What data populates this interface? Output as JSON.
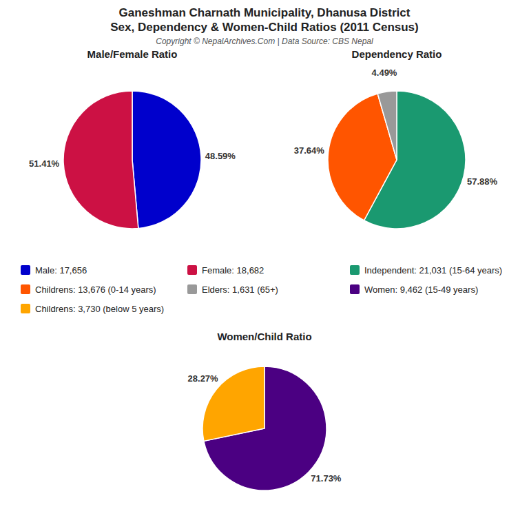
{
  "title": "Ganeshman Charnath Municipality, Dhanusa District",
  "subtitle": "Sex, Dependency & Women-Child Ratios (2011 Census)",
  "annotations": [
    "Copyright © NepalArchives.Com | Data Source: CBS Nepal"
  ],
  "chart_data": [
    {
      "type": "pie",
      "title": "Male/Female Ratio",
      "categories": [
        "Male: 17,656",
        "Female: 18,682"
      ],
      "values": [
        48.59,
        51.41
      ],
      "value_labels": [
        "48.59%",
        "51.41%"
      ],
      "colors": [
        "#0000CC",
        "#CC1144"
      ],
      "data_labels": true,
      "legend": "bottom"
    },
    {
      "type": "pie",
      "title": "Dependency Ratio",
      "categories": [
        "Independent: 21,031 (15-64 years)",
        "Childrens: 13,676 (0-14 years)",
        "Elders: 1,631 (65+)"
      ],
      "values": [
        57.88,
        37.64,
        4.49
      ],
      "value_labels": [
        "57.88%",
        "37.64%",
        "4.49%"
      ],
      "colors": [
        "#1A9970",
        "#FF5500",
        "#999999"
      ],
      "data_labels": true,
      "legend": "bottom"
    },
    {
      "type": "pie",
      "title": "Women/Child Ratio",
      "categories": [
        "Women: 9,462 (15-49 years)",
        "Childrens: 3,730 (below 5 years)"
      ],
      "values": [
        71.73,
        28.27
      ],
      "value_labels": [
        "71.73%",
        "28.27%"
      ],
      "colors": [
        "#4B0082",
        "#FFA500"
      ],
      "data_labels": true,
      "legend": "top"
    }
  ]
}
